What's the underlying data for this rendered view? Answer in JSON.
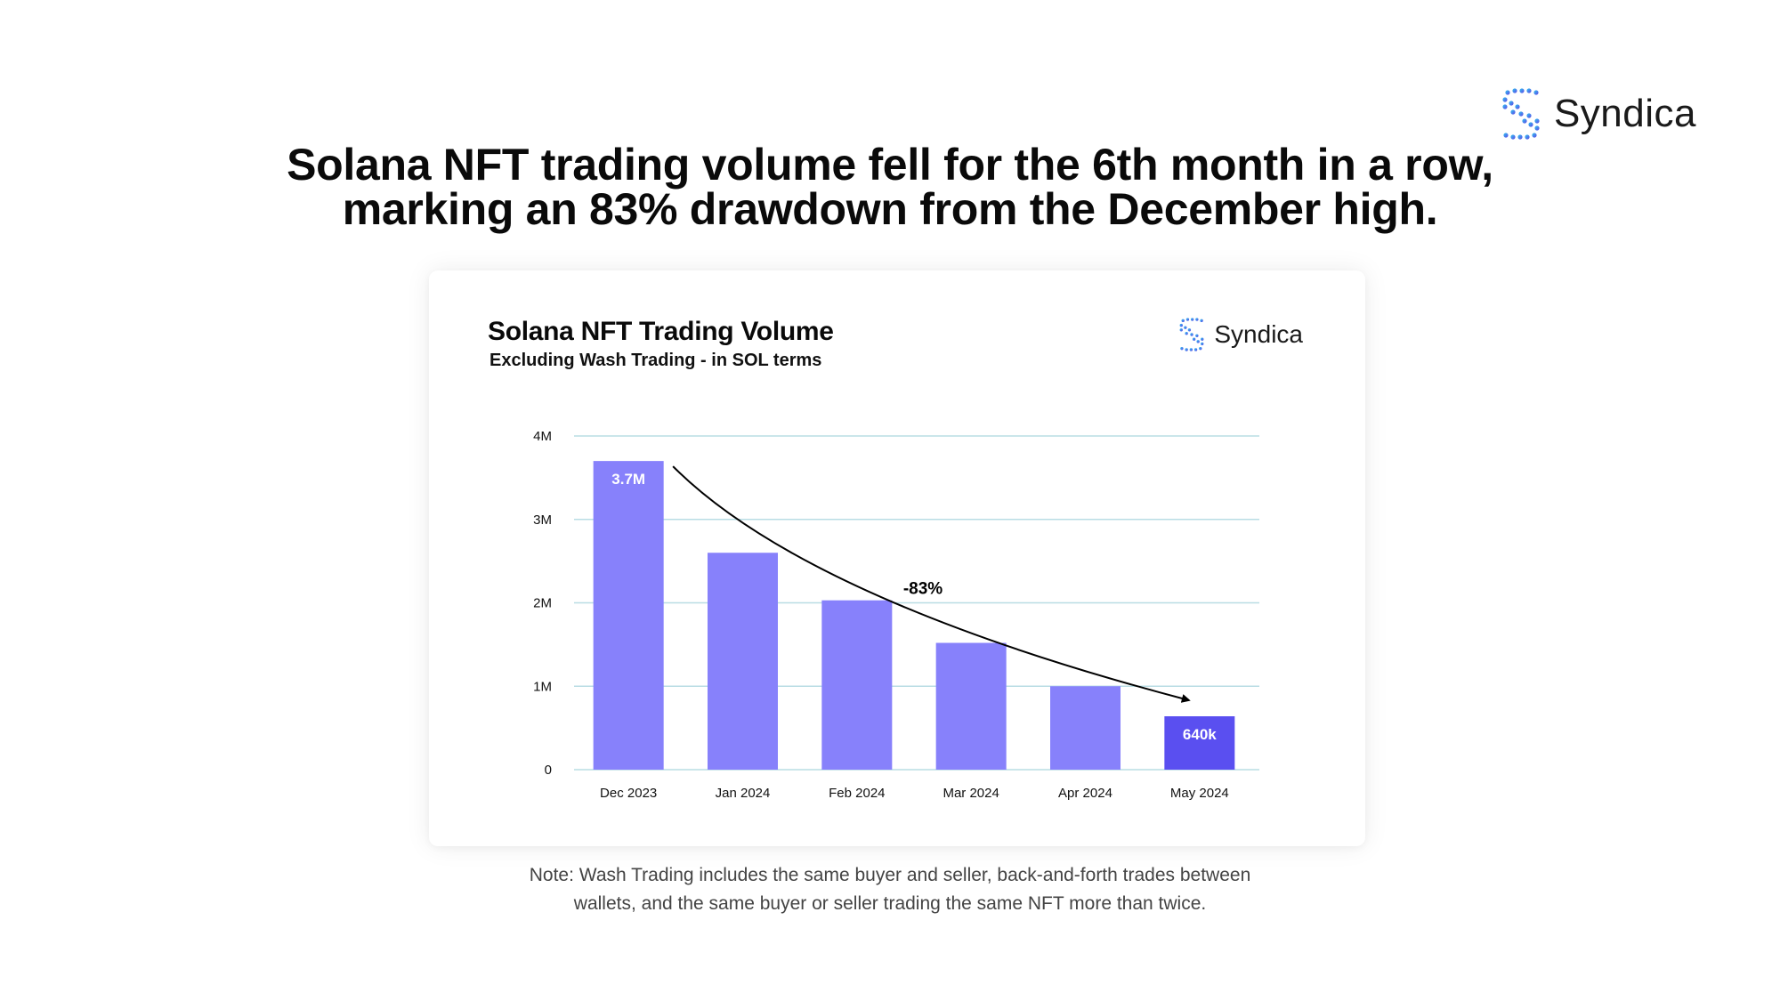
{
  "headline": {
    "line1": "Solana NFT trading volume fell for the 6th month in a row,",
    "line2": "marking an 83% drawdown from the December high."
  },
  "brand": {
    "name": "Syndica"
  },
  "note": {
    "line1": "Note: Wash Trading includes the same buyer and seller, back-and-forth trades between",
    "line2": "wallets, and the same buyer or seller trading the same NFT more than twice."
  },
  "colors": {
    "bar": "#8781fb",
    "bar_highlight": "#5a4ff0",
    "gridline": "#b9dde4",
    "logo_gradient": [
      "#2ec5f0",
      "#5f48e8"
    ]
  },
  "chart_data": {
    "type": "bar",
    "title": "Solana NFT Trading Volume",
    "subtitle": "Excluding Wash Trading - in SOL terms",
    "categories": [
      "Dec 2023",
      "Jan 2024",
      "Feb 2024",
      "Mar 2024",
      "Apr 2024",
      "May 2024"
    ],
    "values": [
      3700000,
      2600000,
      2030000,
      1520000,
      1000000,
      640000
    ],
    "data_labels": [
      "3.7M",
      "",
      "",
      "",
      "",
      "640k"
    ],
    "highlight_index": 5,
    "ylim": [
      0,
      4000000
    ],
    "yticks": [
      0,
      1000000,
      2000000,
      3000000,
      4000000
    ],
    "ytick_labels": [
      "0",
      "1M",
      "2M",
      "3M",
      "4M"
    ],
    "xlabel": "",
    "ylabel": "",
    "grid": true,
    "annotation": {
      "text": "-83%",
      "from": "Dec 2023",
      "to": "May 2024"
    }
  }
}
